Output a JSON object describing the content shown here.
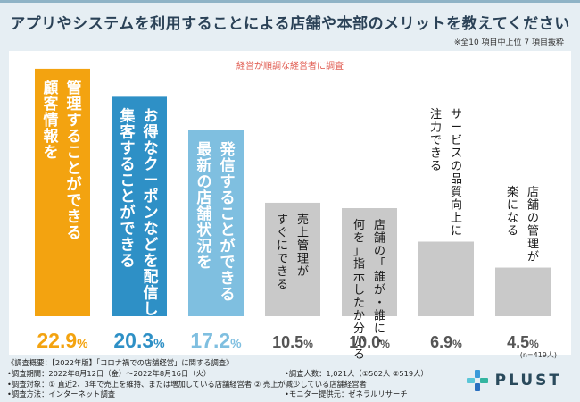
{
  "title": "アプリやシステムを利用することによる店舗や本部のメリットを教えてください",
  "note": "※全10 項目中上位 7 項目抜粋",
  "subtitle": "経営が順調な経営者に調査",
  "n_label": "(n=419人)",
  "brand": "PLUST",
  "colors": {
    "bar1": "#f3a310",
    "bar2": "#2e90c6",
    "bar3": "#7fbfe0",
    "bar_other": "#c9c9c9",
    "label_other": "#1a1a1a",
    "title": "#2b4257"
  },
  "footer": {
    "line1": "《調査概要：【2022年版】「コロナ禍での店舗経営」に関する調査》",
    "line2a": "•調査期間：2022年8月12日（金）〜2022年8月16日（火）",
    "line2b": "•調査人数：1,021人（①502人 ②519人）",
    "line3": "•調査対象：① 直近2、3年で売上を維持、または増加している店舗経営者 ② 売上が減少している店舗経営者",
    "line4a": "•調査方法：インターネット調査",
    "line4b": "•モニター提供元：ゼネラルリサーチ"
  },
  "chart_data": {
    "type": "bar",
    "title": "アプリやシステムを利用することによる店舗や本部のメリットを教えてください",
    "subtitle": "経営が順調な経営者に調査",
    "unit": "%",
    "ylim": [
      0,
      25
    ],
    "categories": [
      "管理することができる顧客情報を",
      "お得なクーポンなどを配信して集客することができる",
      "発信することができる最新の店舗状況を",
      "売上管理がすぐにできる",
      "店舗の「誰が・誰に・何を」指示したか分かる",
      "サービスの品質向上に注力できる",
      "店舗の管理が楽になる"
    ],
    "label_columns": [
      [
        "管理することができる",
        "顧客情報を"
      ],
      [
        "お得なクーポンなどを配信して",
        "集客することができる"
      ],
      [
        "発信することができる",
        "最新の店舗状況を"
      ],
      [
        "売上管理が",
        "すぐにできる"
      ],
      [
        "店舗の「誰が・誰に・",
        "何を」指示したか分かる"
      ],
      [
        "サービスの品質向上に",
        "注力できる"
      ],
      [
        "店舗の管理が",
        "楽になる"
      ]
    ],
    "values": [
      22.9,
      20.3,
      17.2,
      10.5,
      10.0,
      6.9,
      4.5
    ],
    "value_labels": [
      "22.9",
      "20.3",
      "17.2",
      "10.5",
      "10.0",
      "6.9",
      "4.5"
    ]
  }
}
